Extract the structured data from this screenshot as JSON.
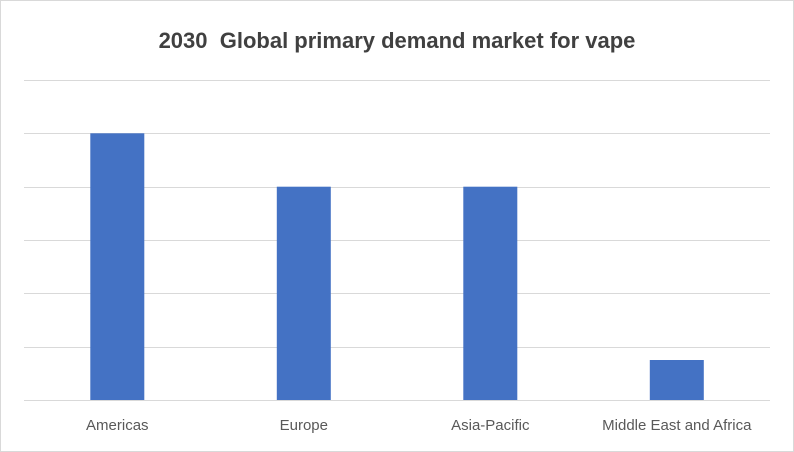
{
  "chart_data": {
    "type": "bar",
    "title": "2030  Global primary demand market for vape",
    "xlabel": "",
    "ylabel": "",
    "categories": [
      "Americas",
      "Europe",
      "Asia-Pacific",
      "Middle East and Africa"
    ],
    "series": [
      {
        "values": [
          5,
          4,
          4,
          0.75
        ]
      }
    ],
    "ylim": [
      0,
      6
    ],
    "y_gridlines": true,
    "y_tick_labels_visible": false,
    "legend": "none",
    "bar_color": "#4472c4",
    "grid_color": "#d9d9d9"
  }
}
